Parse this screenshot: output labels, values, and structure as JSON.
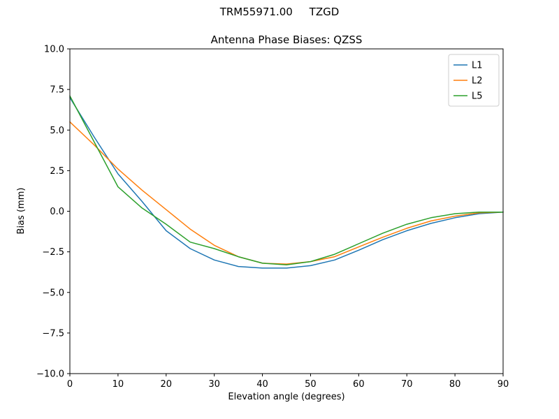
{
  "header": {
    "suptitle": "TRM55971.00     TZGD",
    "title": "Antenna Phase Biases: QZSS"
  },
  "chart_data": {
    "type": "line",
    "title": "Antenna Phase Biases: QZSS",
    "suptitle": "TRM55971.00     TZGD",
    "xlabel": "Elevation angle (degrees)",
    "ylabel": "Bias (mm)",
    "xlim": [
      0,
      90
    ],
    "ylim": [
      -10,
      10
    ],
    "xticks": [
      0,
      10,
      20,
      30,
      40,
      50,
      60,
      70,
      80,
      90
    ],
    "xtick_labels": [
      "0",
      "10",
      "20",
      "30",
      "40",
      "50",
      "60",
      "70",
      "80",
      "90"
    ],
    "yticks": [
      -10,
      -7.5,
      -5,
      -2.5,
      0,
      2.5,
      5,
      7.5,
      10
    ],
    "ytick_labels": [
      "−10.0",
      "−7.5",
      "−5.0",
      "−2.5",
      "0.0",
      "2.5",
      "5.0",
      "7.5",
      "10.0"
    ],
    "grid": false,
    "legend_position": "upper right",
    "frame_color": "#000000",
    "legend_border_color": "#cccccc",
    "x": [
      0,
      5,
      10,
      15,
      20,
      25,
      30,
      35,
      40,
      45,
      50,
      55,
      60,
      65,
      70,
      75,
      80,
      85,
      90
    ],
    "series": [
      {
        "name": "L1",
        "color": "#1f77b4",
        "values": [
          7.0,
          4.6,
          2.3,
          0.6,
          -1.2,
          -2.3,
          -3.0,
          -3.4,
          -3.5,
          -3.5,
          -3.35,
          -3.0,
          -2.4,
          -1.75,
          -1.2,
          -0.75,
          -0.4,
          -0.15,
          -0.05
        ]
      },
      {
        "name": "L2",
        "color": "#ff7f0e",
        "values": [
          5.5,
          4.1,
          2.6,
          1.3,
          0.1,
          -1.1,
          -2.1,
          -2.8,
          -3.2,
          -3.25,
          -3.1,
          -2.8,
          -2.2,
          -1.6,
          -1.05,
          -0.6,
          -0.3,
          -0.1,
          -0.05
        ]
      },
      {
        "name": "L5",
        "color": "#2ca02c",
        "values": [
          7.1,
          4.3,
          1.5,
          0.2,
          -0.8,
          -1.9,
          -2.3,
          -2.8,
          -3.2,
          -3.3,
          -3.1,
          -2.65,
          -2.0,
          -1.35,
          -0.8,
          -0.4,
          -0.15,
          -0.05,
          -0.05
        ]
      }
    ]
  }
}
